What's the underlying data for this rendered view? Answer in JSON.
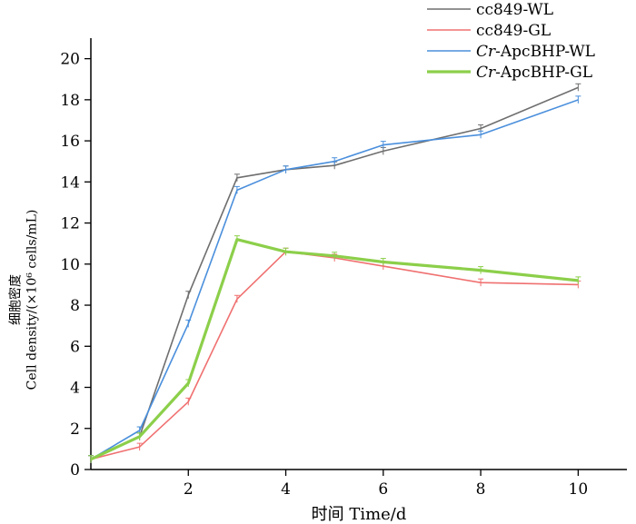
{
  "chart_data": {
    "type": "line",
    "title": "",
    "xlabel": "时间 Time/d",
    "ylabel_line1": "细胞密度",
    "ylabel_line2": "Cell density/(×10⁶ cells/mL)",
    "xlim": [
      0,
      11
    ],
    "ylim": [
      0,
      21
    ],
    "x_ticks": [
      2,
      4,
      6,
      8,
      10
    ],
    "y_ticks": [
      0,
      2,
      4,
      6,
      8,
      10,
      12,
      14,
      16,
      18,
      20
    ],
    "grid": false,
    "legend_position": "top-right",
    "series": [
      {
        "name": "cc849-WL",
        "color": "#6e6e6e",
        "stroke_width": 1.6,
        "x": [
          0,
          1,
          2,
          3,
          4,
          5,
          6,
          8,
          10
        ],
        "y": [
          0.5,
          1.6,
          8.5,
          14.2,
          14.6,
          14.8,
          15.5,
          16.6,
          18.6
        ]
      },
      {
        "name": "cc849-GL",
        "color": "#f07070",
        "stroke_width": 1.6,
        "x": [
          0,
          1,
          2,
          3,
          4,
          5,
          6,
          8,
          10
        ],
        "y": [
          0.5,
          1.1,
          3.3,
          8.3,
          10.6,
          10.3,
          9.9,
          9.1,
          9.0
        ]
      },
      {
        "name": "Cr-ApcBHP-WL",
        "name_italic": "Cr",
        "name_rest": "-ApcBHP-WL",
        "color": "#4a8fdc",
        "stroke_width": 1.6,
        "x": [
          0,
          1,
          2,
          3,
          4,
          5,
          6,
          8,
          10
        ],
        "y": [
          0.5,
          1.9,
          7.1,
          13.6,
          14.6,
          15.0,
          15.8,
          16.3,
          18.0
        ]
      },
      {
        "name": "Cr-ApcBHP-GL",
        "name_italic": "Cr",
        "name_rest": "-ApcBHP-GL",
        "color": "#8ccf4a",
        "stroke_width": 3.2,
        "x": [
          0,
          1,
          2,
          3,
          4,
          5,
          6,
          8,
          10
        ],
        "y": [
          0.5,
          1.6,
          4.2,
          11.2,
          10.6,
          10.4,
          10.1,
          9.7,
          9.2
        ]
      }
    ]
  }
}
